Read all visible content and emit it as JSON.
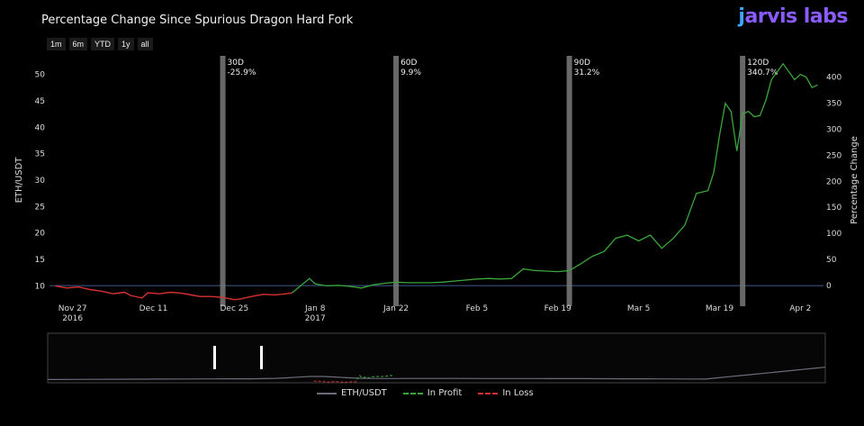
{
  "title": "Percentage Change Since Spurious Dragon Hard Fork",
  "logo": {
    "prefix": "j",
    "text": "arvis labs"
  },
  "range_buttons": [
    "1m",
    "6m",
    "YTD",
    "1y",
    "all"
  ],
  "colors": {
    "profit": "#3aa63a",
    "loss": "#d83030",
    "price": "#6b6b7a",
    "marker": "#7a7a7a",
    "zero_line": "#3f5a8c"
  },
  "chart_data": {
    "type": "line",
    "ylabel_left": "ETH/USDT",
    "ylabel_right": "Percentage Change",
    "y_left_ticks": [
      10,
      15,
      20,
      25,
      30,
      35,
      40,
      45,
      50
    ],
    "y_right_ticks": [
      0,
      50,
      100,
      150,
      200,
      250,
      300,
      350,
      400
    ],
    "x_ticks": [
      {
        "label": "Nov 27",
        "sub": "2016",
        "day": 0
      },
      {
        "label": "Dec 11",
        "sub": "",
        "day": 14
      },
      {
        "label": "Dec 25",
        "sub": "",
        "day": 28
      },
      {
        "label": "Jan 8",
        "sub": "2017",
        "day": 42
      },
      {
        "label": "Jan 22",
        "sub": "",
        "day": 56
      },
      {
        "label": "Feb 5",
        "sub": "",
        "day": 70
      },
      {
        "label": "Feb 19",
        "sub": "",
        "day": 84
      },
      {
        "label": "Mar 5",
        "sub": "",
        "day": 98
      },
      {
        "label": "Mar 19",
        "sub": "",
        "day": 112
      },
      {
        "label": "Apr 2",
        "sub": "",
        "day": 126
      }
    ],
    "markers": [
      {
        "label": "30D",
        "value": "-25.9%",
        "day": 26
      },
      {
        "label": "60D",
        "value": "9.9%",
        "day": 56
      },
      {
        "label": "90D",
        "value": "31.2%",
        "day": 86
      },
      {
        "label": "120D",
        "value": "340.7%",
        "day": 116
      }
    ],
    "series": [
      {
        "name": "ETH/USDT",
        "style": "solid"
      },
      {
        "name": "In Profit",
        "style": "dashed"
      },
      {
        "name": "In Loss",
        "style": "dashed"
      }
    ],
    "loss_points": [
      [
        -3,
        10.0
      ],
      [
        -1,
        9.6
      ],
      [
        1,
        9.8
      ],
      [
        3,
        9.3
      ],
      [
        5,
        9.0
      ],
      [
        7,
        8.5
      ],
      [
        9,
        8.8
      ],
      [
        10,
        8.2
      ],
      [
        12,
        7.7
      ],
      [
        13,
        8.7
      ],
      [
        15,
        8.5
      ],
      [
        17,
        8.8
      ],
      [
        19,
        8.6
      ],
      [
        21,
        8.2
      ],
      [
        22,
        8.0
      ],
      [
        24,
        8.0
      ],
      [
        26,
        7.8
      ],
      [
        28,
        7.4
      ],
      [
        29,
        7.5
      ],
      [
        31,
        8.0
      ],
      [
        33,
        8.4
      ],
      [
        35,
        8.3
      ],
      [
        37,
        8.5
      ],
      [
        38,
        8.7
      ]
    ],
    "profit_points": [
      [
        38,
        8.7
      ],
      [
        40,
        10.5
      ],
      [
        41,
        11.4
      ],
      [
        42,
        10.4
      ],
      [
        44,
        10.0
      ],
      [
        46,
        10.1
      ],
      [
        48,
        9.9
      ],
      [
        50,
        9.6
      ],
      [
        52,
        10.2
      ],
      [
        54,
        10.5
      ],
      [
        56,
        10.7
      ],
      [
        58,
        10.6
      ],
      [
        60,
        10.6
      ],
      [
        62,
        10.6
      ],
      [
        64,
        10.7
      ],
      [
        66,
        10.9
      ],
      [
        68,
        11.1
      ],
      [
        70,
        11.3
      ],
      [
        72,
        11.4
      ],
      [
        74,
        11.3
      ],
      [
        76,
        11.4
      ],
      [
        78,
        13.2
      ],
      [
        80,
        12.9
      ],
      [
        82,
        12.8
      ],
      [
        84,
        12.7
      ],
      [
        86,
        12.9
      ],
      [
        88,
        14.2
      ],
      [
        90,
        15.6
      ],
      [
        92,
        16.5
      ],
      [
        94,
        19.0
      ],
      [
        96,
        19.6
      ],
      [
        98,
        18.5
      ],
      [
        100,
        19.6
      ],
      [
        102,
        17.1
      ],
      [
        104,
        19.0
      ],
      [
        106,
        21.5
      ],
      [
        108,
        27.5
      ],
      [
        110,
        28.0
      ],
      [
        111,
        31.5
      ],
      [
        112,
        38.5
      ],
      [
        113,
        44.5
      ],
      [
        114,
        43.0
      ],
      [
        115,
        35.5
      ],
      [
        116,
        42.5
      ],
      [
        117,
        43.0
      ],
      [
        118,
        42.0
      ],
      [
        119,
        42.2
      ],
      [
        120,
        45.0
      ],
      [
        121,
        49.0
      ],
      [
        122,
        50.5
      ],
      [
        123,
        52.0
      ],
      [
        124,
        50.5
      ],
      [
        125,
        49.0
      ],
      [
        126,
        50.0
      ],
      [
        127,
        49.5
      ],
      [
        128,
        47.5
      ],
      [
        129,
        48.0
      ]
    ]
  },
  "legend": {
    "price": "ETH/USDT",
    "profit": "In Profit",
    "loss": "In Loss"
  }
}
